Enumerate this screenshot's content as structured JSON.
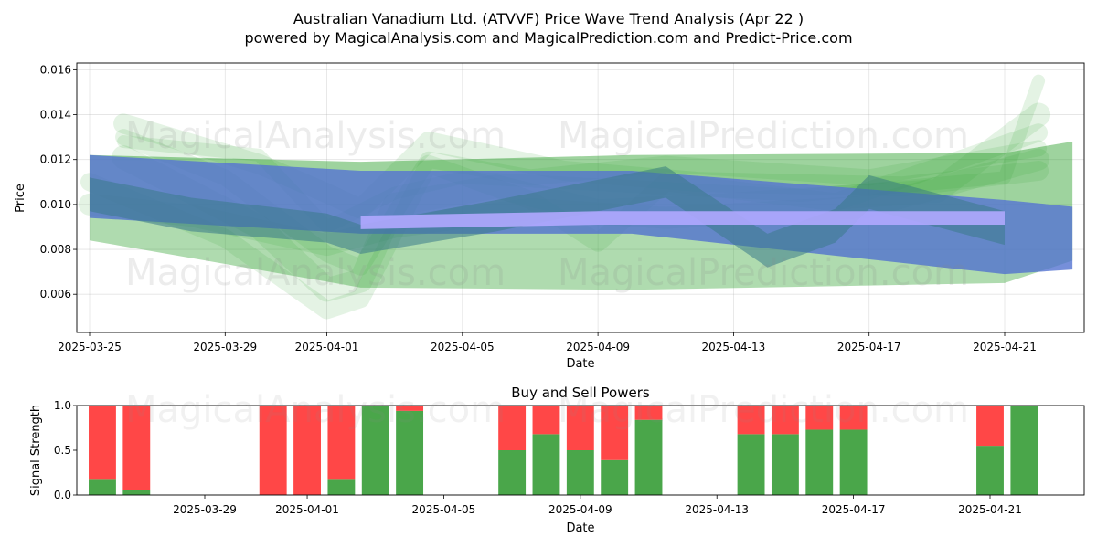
{
  "title_line1": "Australian Vanadium Ltd. (ATVVF) Price Wave Trend Analysis (Apr 22 )",
  "title_line2": "powered by MagicalAnalysis.com and MagicalPrediction.com and Predict-Price.com",
  "watermarks": [
    "MagicalAnalysis.com",
    "MagicalPrediction.com"
  ],
  "colors": {
    "green_band": "#2ca02c",
    "blue_band": "#4f6fcf",
    "teal_overlap": "#3a7a8a",
    "lavender_band": "#b0a8ff",
    "buy": "#4aa64a",
    "sell": "#ff4747"
  },
  "chart_data": [
    {
      "type": "area",
      "title": "",
      "xlabel": "Date",
      "ylabel": "Price",
      "xlim": [
        "2025-03-25",
        "2025-04-23"
      ],
      "ylim": [
        0.0043,
        0.0163
      ],
      "x_ticks": [
        "2025-03-25",
        "2025-03-29",
        "2025-04-01",
        "2025-04-05",
        "2025-04-09",
        "2025-04-13",
        "2025-04-17",
        "2025-04-21"
      ],
      "y_ticks": [
        "0.006",
        "0.008",
        "0.010",
        "0.012",
        "0.014",
        "0.016"
      ],
      "grid": true,
      "series": [
        {
          "x": [
            "2025-03-25",
            "2025-04-02",
            "2025-04-10",
            "2025-04-21",
            "2025-04-23"
          ],
          "upper": [
            0.0122,
            0.0119,
            0.0122,
            0.0123,
            0.0128
          ],
          "lower": [
            0.0084,
            0.0063,
            0.0062,
            0.0065,
            0.0075
          ]
        },
        {
          "x": [
            "2025-03-25",
            "2025-04-02",
            "2025-04-10",
            "2025-04-21",
            "2025-04-23"
          ],
          "upper": [
            0.0122,
            0.0115,
            0.0115,
            0.0102,
            0.0099
          ],
          "lower": [
            0.0094,
            0.0087,
            0.0087,
            0.0069,
            0.0071
          ]
        },
        {
          "x": [
            "2025-03-25",
            "2025-03-28",
            "2025-04-01",
            "2025-04-02",
            "2025-04-06",
            "2025-04-11",
            "2025-04-14",
            "2025-04-16",
            "2025-04-17",
            "2025-04-21"
          ],
          "upper": [
            0.0112,
            0.0103,
            0.0096,
            0.0091,
            0.0102,
            0.0117,
            0.0087,
            0.0098,
            0.0113,
            0.0097
          ],
          "lower": [
            0.0097,
            0.0088,
            0.0083,
            0.0078,
            0.0088,
            0.0103,
            0.0072,
            0.0083,
            0.0098,
            0.0082
          ]
        },
        {
          "x": [
            "2025-04-02",
            "2025-04-09",
            "2025-04-21"
          ],
          "upper": [
            0.0095,
            0.0097,
            0.0097
          ],
          "lower": [
            0.0089,
            0.0091,
            0.0091
          ]
        }
      ]
    },
    {
      "type": "bar",
      "title": "Buy and Sell Powers",
      "xlabel": "Date",
      "ylabel": "Signal Strength",
      "ylim": [
        0,
        1
      ],
      "y_ticks": [
        "0.0",
        "0.5",
        "1.0"
      ],
      "x_ticks": [
        "2025-03-29",
        "2025-04-01",
        "2025-04-05",
        "2025-04-09",
        "2025-04-13",
        "2025-04-17",
        "2025-04-21"
      ],
      "categories": [
        "2025-03-26",
        "2025-03-27",
        "2025-03-31",
        "2025-04-01",
        "2025-04-02",
        "2025-04-03",
        "2025-04-04",
        "2025-04-07",
        "2025-04-08",
        "2025-04-09",
        "2025-04-10",
        "2025-04-11",
        "2025-04-14",
        "2025-04-15",
        "2025-04-16",
        "2025-04-17",
        "2025-04-21",
        "2025-04-22"
      ],
      "series": [
        {
          "values": [
            0.17,
            0.06,
            0.0,
            0.0,
            0.17,
            1.0,
            0.94,
            0.5,
            0.68,
            0.5,
            0.39,
            0.84,
            0.68,
            0.68,
            0.73,
            0.73,
            0.55,
            1.0
          ]
        },
        {
          "values": [
            0.83,
            0.94,
            1.0,
            1.0,
            0.83,
            0.0,
            0.06,
            0.5,
            0.32,
            0.5,
            0.61,
            0.16,
            0.32,
            0.32,
            0.27,
            0.27,
            0.45,
            0.0
          ]
        }
      ]
    }
  ]
}
